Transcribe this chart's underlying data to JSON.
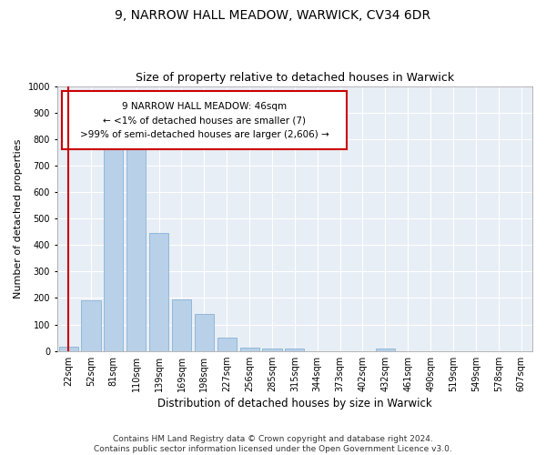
{
  "title": "9, NARROW HALL MEADOW, WARWICK, CV34 6DR",
  "subtitle": "Size of property relative to detached houses in Warwick",
  "xlabel": "Distribution of detached houses by size in Warwick",
  "ylabel": "Number of detached properties",
  "bar_color": "#b8d0e8",
  "bar_edge_color": "#7aaad0",
  "background_color": "#e8eef5",
  "grid_color": "#ffffff",
  "annotation_box_color": "#cc0000",
  "annotation_text": "9 NARROW HALL MEADOW: 46sqm\n← <1% of detached houses are smaller (7)\n>99% of semi-detached houses are larger (2,606) →",
  "property_line_x": 0,
  "property_line_color": "#cc0000",
  "categories": [
    "22sqm",
    "52sqm",
    "81sqm",
    "110sqm",
    "139sqm",
    "169sqm",
    "198sqm",
    "227sqm",
    "256sqm",
    "285sqm",
    "315sqm",
    "344sqm",
    "373sqm",
    "402sqm",
    "432sqm",
    "461sqm",
    "490sqm",
    "519sqm",
    "549sqm",
    "578sqm",
    "607sqm"
  ],
  "values": [
    15,
    190,
    790,
    790,
    445,
    195,
    140,
    50,
    13,
    10,
    10,
    0,
    0,
    0,
    10,
    0,
    0,
    0,
    0,
    0,
    0
  ],
  "ylim": [
    0,
    1000
  ],
  "yticks": [
    0,
    100,
    200,
    300,
    400,
    500,
    600,
    700,
    800,
    900,
    1000
  ],
  "footnote": "Contains HM Land Registry data © Crown copyright and database right 2024.\nContains public sector information licensed under the Open Government Licence v3.0.",
  "title_fontsize": 10,
  "subtitle_fontsize": 9,
  "xlabel_fontsize": 8.5,
  "ylabel_fontsize": 8,
  "tick_fontsize": 7,
  "annotation_fontsize": 7.5,
  "footnote_fontsize": 6.5
}
